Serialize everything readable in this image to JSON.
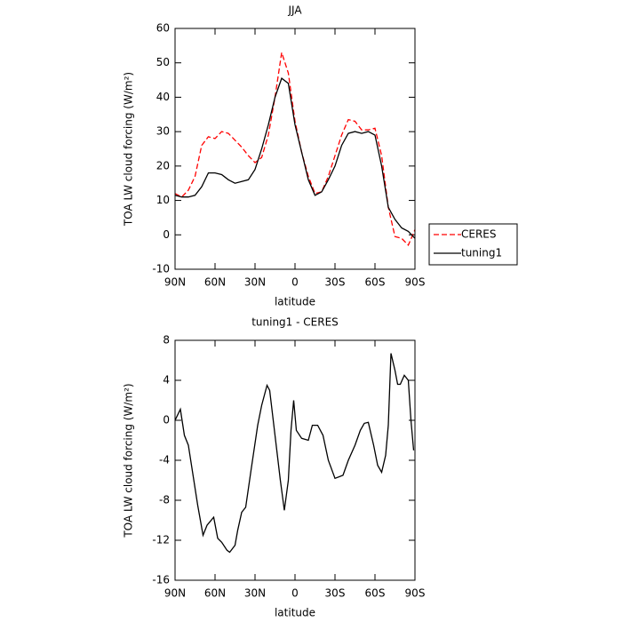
{
  "chart_data": [
    {
      "type": "line",
      "title": "JJA",
      "xlabel": "latitude",
      "ylabel": "TOA LW cloud forcing (W/m²)",
      "x": [
        90,
        85,
        80,
        75,
        70,
        65,
        60,
        55,
        50,
        45,
        40,
        35,
        30,
        25,
        20,
        15,
        10,
        5,
        0,
        -5,
        -10,
        -15,
        -20,
        -25,
        -30,
        -35,
        -40,
        -45,
        -50,
        -55,
        -60,
        -65,
        -70,
        -75,
        -80,
        -85,
        -90
      ],
      "series": [
        {
          "name": "CERES",
          "color": "#ff0000",
          "linestyle": "dashed",
          "values": [
            12,
            11,
            13,
            17,
            26,
            28.5,
            28,
            30,
            29.5,
            27.5,
            25.5,
            23,
            21,
            22.5,
            29,
            40,
            53,
            47,
            33,
            24,
            17,
            12,
            12.5,
            17,
            23,
            29,
            33.5,
            33,
            30.5,
            30.5,
            31,
            23,
            8,
            -0.5,
            -1,
            -3,
            1.5
          ]
        },
        {
          "name": "tuning1",
          "color": "#000000",
          "linestyle": "solid",
          "values": [
            11.5,
            11,
            11,
            11.5,
            14,
            18,
            18,
            17.5,
            16,
            15,
            15.5,
            16,
            19,
            25,
            32,
            40,
            45.5,
            44,
            32,
            24,
            16,
            11.5,
            12.5,
            16,
            20,
            26,
            29.5,
            30,
            29.5,
            30,
            29,
            20,
            8,
            4.5,
            2,
            1,
            -1
          ]
        }
      ],
      "xlim": [
        90,
        -90
      ],
      "xticks": [
        {
          "value": 90,
          "label": "90N"
        },
        {
          "value": 60,
          "label": "60N"
        },
        {
          "value": 30,
          "label": "30N"
        },
        0,
        {
          "value": -30,
          "label": "30S"
        },
        {
          "value": -60,
          "label": "60S"
        },
        {
          "value": -90,
          "label": "90S"
        }
      ],
      "ylim": [
        -10,
        60
      ],
      "yticks": [
        -10,
        0,
        10,
        20,
        30,
        40,
        50,
        60
      ],
      "legend": "right"
    },
    {
      "type": "line",
      "title": "tuning1 - CERES",
      "xlabel": "latitude",
      "ylabel": "TOA LW cloud forcing (W/m²)",
      "x": [
        90,
        86,
        83,
        80,
        73,
        69,
        66,
        61,
        58,
        55,
        51,
        49,
        45,
        43,
        40,
        37,
        33,
        28,
        25,
        21,
        19,
        15,
        11,
        8,
        5,
        3,
        1,
        -1,
        -5,
        -10,
        -13,
        -17,
        -21,
        -25,
        -30,
        -36,
        -40,
        -45,
        -49,
        -52,
        -55,
        -59,
        -62,
        -65,
        -68,
        -70,
        -72,
        -75,
        -77,
        -79,
        -82,
        -85,
        -87,
        -89
      ],
      "values": [
        0,
        1.1,
        -1.5,
        -2.5,
        -8.5,
        -11.5,
        -10.5,
        -9.7,
        -11.8,
        -12.2,
        -13,
        -13.2,
        -12.5,
        -11,
        -9.2,
        -8.7,
        -5,
        -0.5,
        1.5,
        3.5,
        3,
        -1.5,
        -6,
        -9,
        -6,
        -1,
        2,
        -1,
        -1.8,
        -2,
        -0.5,
        -0.5,
        -1.5,
        -4,
        -5.8,
        -5.5,
        -4,
        -2.5,
        -1,
        -0.3,
        -0.2,
        -2.5,
        -4.5,
        -5.2,
        -3.5,
        -0.5,
        6.7,
        5,
        3.6,
        3.6,
        4.5,
        4,
        0,
        -3
      ],
      "color": "#000000",
      "xlim": [
        90,
        -90
      ],
      "xticks": [
        {
          "value": 90,
          "label": "90N"
        },
        {
          "value": 60,
          "label": "60N"
        },
        {
          "value": 30,
          "label": "30N"
        },
        0,
        {
          "value": -30,
          "label": "30S"
        },
        {
          "value": -60,
          "label": "60S"
        },
        {
          "value": -90,
          "label": "90S"
        }
      ],
      "ylim": [
        -16,
        8
      ],
      "yticks": [
        -16,
        -12,
        -8,
        -4,
        0,
        4,
        8
      ]
    }
  ]
}
